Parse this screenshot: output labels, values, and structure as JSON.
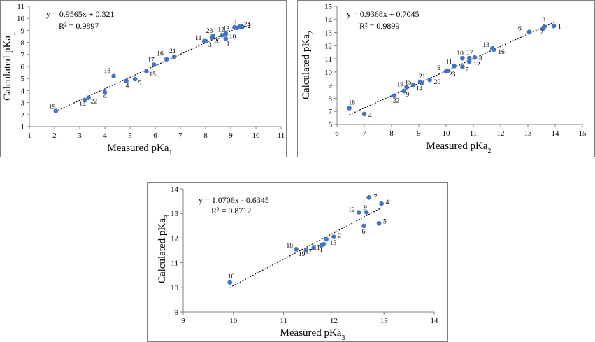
{
  "chart_data": [
    {
      "type": "scatter",
      "xlabel": "Measured pKa",
      "xlabel_sub": "1",
      "ylabel": "Calculated pKa",
      "ylabel_sub": "1",
      "xlim": [
        1,
        11
      ],
      "ylim": [
        1,
        11
      ],
      "xticks": [
        1,
        2,
        3,
        4,
        5,
        6,
        7,
        8,
        9,
        10,
        11
      ],
      "yticks": [
        1,
        2,
        3,
        4,
        5,
        6,
        7,
        8,
        9,
        10,
        11
      ],
      "equation": "y = 0.9565x + 0.321",
      "r2": "R² = 0.9897",
      "trendline": {
        "slope": 0.9565,
        "intercept": 0.321,
        "x_range": [
          2.05,
          9.4
        ]
      },
      "points": [
        {
          "label": "1",
          "x": 8.8,
          "y": 8.3
        },
        {
          "label": "2",
          "x": 9.45,
          "y": 9.3
        },
        {
          "label": "3",
          "x": 8.0,
          "y": 8.1
        },
        {
          "label": "4",
          "x": 4.85,
          "y": 4.8
        },
        {
          "label": "5",
          "x": 5.2,
          "y": 4.95
        },
        {
          "label": "6",
          "x": 9.25,
          "y": 9.2
        },
        {
          "label": "8",
          "x": 9.15,
          "y": 9.25
        },
        {
          "label": "9",
          "x": 4.0,
          "y": 3.85
        },
        {
          "label": "10",
          "x": 8.8,
          "y": 8.75
        },
        {
          "label": "11",
          "x": 7.95,
          "y": 8.1
        },
        {
          "label": "12",
          "x": 8.65,
          "y": 8.6
        },
        {
          "label": "13",
          "x": 8.8,
          "y": 8.7
        },
        {
          "label": "14",
          "x": 3.2,
          "y": 3.2
        },
        {
          "label": "15",
          "x": 5.65,
          "y": 5.6
        },
        {
          "label": "16",
          "x": 6.45,
          "y": 6.6
        },
        {
          "label": "17",
          "x": 5.95,
          "y": 6.15
        },
        {
          "label": "18",
          "x": 4.35,
          "y": 5.2
        },
        {
          "label": "19",
          "x": 2.05,
          "y": 2.3
        },
        {
          "label": "20",
          "x": 8.25,
          "y": 8.4
        },
        {
          "label": "21",
          "x": 6.75,
          "y": 6.8
        },
        {
          "label": "22",
          "x": 3.35,
          "y": 3.4
        },
        {
          "label": "23",
          "x": 8.3,
          "y": 8.55
        },
        {
          "label": "24",
          "x": 9.35,
          "y": 9.3
        }
      ]
    },
    {
      "type": "scatter",
      "xlabel": "Measured pKa",
      "xlabel_sub": "2",
      "ylabel": "Calculated pKa",
      "ylabel_sub": "2",
      "xlim": [
        6,
        15
      ],
      "ylim": [
        6,
        15
      ],
      "xticks": [
        6,
        7,
        8,
        9,
        10,
        11,
        12,
        13,
        14,
        15
      ],
      "yticks": [
        6,
        7,
        8,
        9,
        10,
        11,
        12,
        13,
        14,
        15
      ],
      "equation": "y = 0.9368x + 0.7045",
      "r2": "R² = 0.9899",
      "trendline": {
        "slope": 0.9368,
        "intercept": 0.7045,
        "x_range": [
          6.45,
          13.95
        ]
      },
      "points": [
        {
          "label": "1",
          "x": 13.95,
          "y": 13.5
        },
        {
          "label": "2",
          "x": 13.55,
          "y": 13.3
        },
        {
          "label": "3",
          "x": 13.6,
          "y": 13.45
        },
        {
          "label": "4",
          "x": 7.0,
          "y": 6.8
        },
        {
          "label": "5",
          "x": 10.0,
          "y": 10.05
        },
        {
          "label": "6",
          "x": 13.05,
          "y": 13.05
        },
        {
          "label": "7",
          "x": 10.6,
          "y": 10.4
        },
        {
          "label": "8",
          "x": 11.05,
          "y": 11.1
        },
        {
          "label": "9",
          "x": 8.45,
          "y": 8.55
        },
        {
          "label": "10",
          "x": 10.6,
          "y": 11.05
        },
        {
          "label": "11",
          "x": 10.3,
          "y": 10.45
        },
        {
          "label": "12",
          "x": 10.85,
          "y": 10.8
        },
        {
          "label": "13",
          "x": 11.7,
          "y": 11.8
        },
        {
          "label": "14",
          "x": 9.1,
          "y": 9.15
        },
        {
          "label": "15",
          "x": 8.8,
          "y": 9.0
        },
        {
          "label": "16",
          "x": 11.75,
          "y": 11.7
        },
        {
          "label": "17",
          "x": 10.85,
          "y": 11.05
        },
        {
          "label": "18",
          "x": 6.45,
          "y": 7.25
        },
        {
          "label": "19",
          "x": 8.55,
          "y": 8.85
        },
        {
          "label": "20",
          "x": 9.4,
          "y": 9.4
        },
        {
          "label": "21",
          "x": 9.05,
          "y": 9.25
        },
        {
          "label": "22",
          "x": 8.1,
          "y": 8.2
        },
        {
          "label": "23",
          "x": 10.05,
          "y": 10.1
        }
      ]
    },
    {
      "type": "scatter",
      "xlabel": "Measured pKa",
      "xlabel_sub": "3",
      "ylabel": "Calculated pKa",
      "ylabel_sub": "3",
      "xlim": [
        9,
        14
      ],
      "ylim": [
        9,
        14
      ],
      "xticks": [
        9,
        10,
        11,
        12,
        13,
        14
      ],
      "yticks": [
        9,
        10,
        11,
        12,
        13,
        14
      ],
      "equation": "y = 1.0706x - 0.6345",
      "r2": "R² = 0.8712",
      "trendline": {
        "slope": 1.0706,
        "intercept": -0.6345,
        "x_range": [
          9.93,
          12.95
        ]
      },
      "points": [
        {
          "label": "1",
          "x": 11.8,
          "y": 11.75
        },
        {
          "label": "2",
          "x": 12.0,
          "y": 12.05
        },
        {
          "label": "4",
          "x": 12.95,
          "y": 13.4
        },
        {
          "label": "5",
          "x": 12.9,
          "y": 12.6
        },
        {
          "label": "6",
          "x": 12.6,
          "y": 12.5
        },
        {
          "label": "7",
          "x": 12.7,
          "y": 13.65
        },
        {
          "label": "9",
          "x": 12.65,
          "y": 13.05
        },
        {
          "label": "11",
          "x": 11.75,
          "y": 11.7
        },
        {
          "label": "12",
          "x": 12.5,
          "y": 13.05
        },
        {
          "label": "15",
          "x": 11.85,
          "y": 11.95
        },
        {
          "label": "16",
          "x": 9.93,
          "y": 10.2
        },
        {
          "label": "17",
          "x": 11.6,
          "y": 11.6
        },
        {
          "label": "18",
          "x": 11.25,
          "y": 11.55
        },
        {
          "label": "19",
          "x": 11.45,
          "y": 11.5
        }
      ]
    }
  ]
}
